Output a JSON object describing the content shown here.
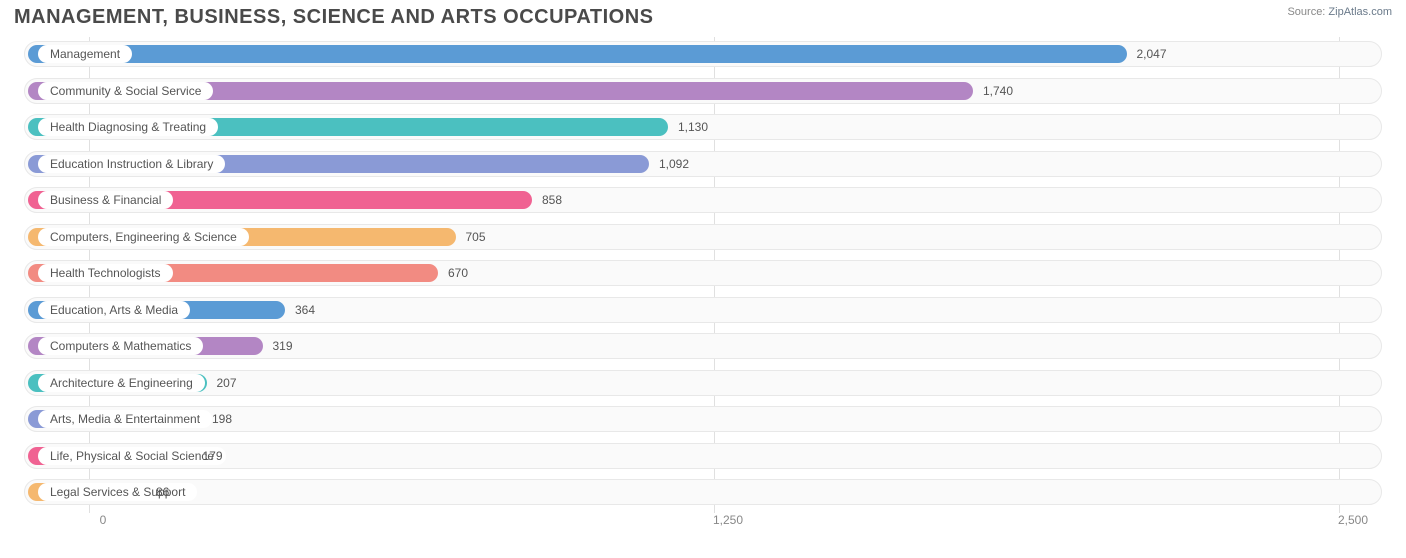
{
  "title": "MANAGEMENT, BUSINESS, SCIENCE AND ARTS OCCUPATIONS",
  "source_prefix": "Source: ",
  "source_name": "ZipAtlas.com",
  "chart": {
    "type": "bar-horizontal",
    "background_color": "#ffffff",
    "track_bg": "#fafafa",
    "track_border": "#e8e8e8",
    "grid_color": "#e0e0e0",
    "label_color": "#555555",
    "title_color": "#4a4a4a",
    "xmin": -150,
    "xmax": 2550,
    "x_ticks": [
      {
        "value": 0,
        "label": "0"
      },
      {
        "value": 1250,
        "label": "1,250"
      },
      {
        "value": 2500,
        "label": "2,500"
      }
    ],
    "bars": [
      {
        "label": "Management",
        "value": 2047,
        "display": "2,047",
        "color": "#5b9bd5"
      },
      {
        "label": "Community & Social Service",
        "value": 1740,
        "display": "1,740",
        "color": "#b386c4"
      },
      {
        "label": "Health Diagnosing & Treating",
        "value": 1130,
        "display": "1,130",
        "color": "#4bc0c0"
      },
      {
        "label": "Education Instruction & Library",
        "value": 1092,
        "display": "1,092",
        "color": "#8a9ad6"
      },
      {
        "label": "Business & Financial",
        "value": 858,
        "display": "858",
        "color": "#f06292"
      },
      {
        "label": "Computers, Engineering & Science",
        "value": 705,
        "display": "705",
        "color": "#f5b86f"
      },
      {
        "label": "Health Technologists",
        "value": 670,
        "display": "670",
        "color": "#f28b82"
      },
      {
        "label": "Education, Arts & Media",
        "value": 364,
        "display": "364",
        "color": "#5b9bd5"
      },
      {
        "label": "Computers & Mathematics",
        "value": 319,
        "display": "319",
        "color": "#b386c4"
      },
      {
        "label": "Architecture & Engineering",
        "value": 207,
        "display": "207",
        "color": "#4bc0c0"
      },
      {
        "label": "Arts, Media & Entertainment",
        "value": 198,
        "display": "198",
        "color": "#8a9ad6"
      },
      {
        "label": "Life, Physical & Social Science",
        "value": 179,
        "display": "179",
        "color": "#f06292"
      },
      {
        "label": "Legal Services & Support",
        "value": 86,
        "display": "86",
        "color": "#f5b86f"
      }
    ]
  }
}
